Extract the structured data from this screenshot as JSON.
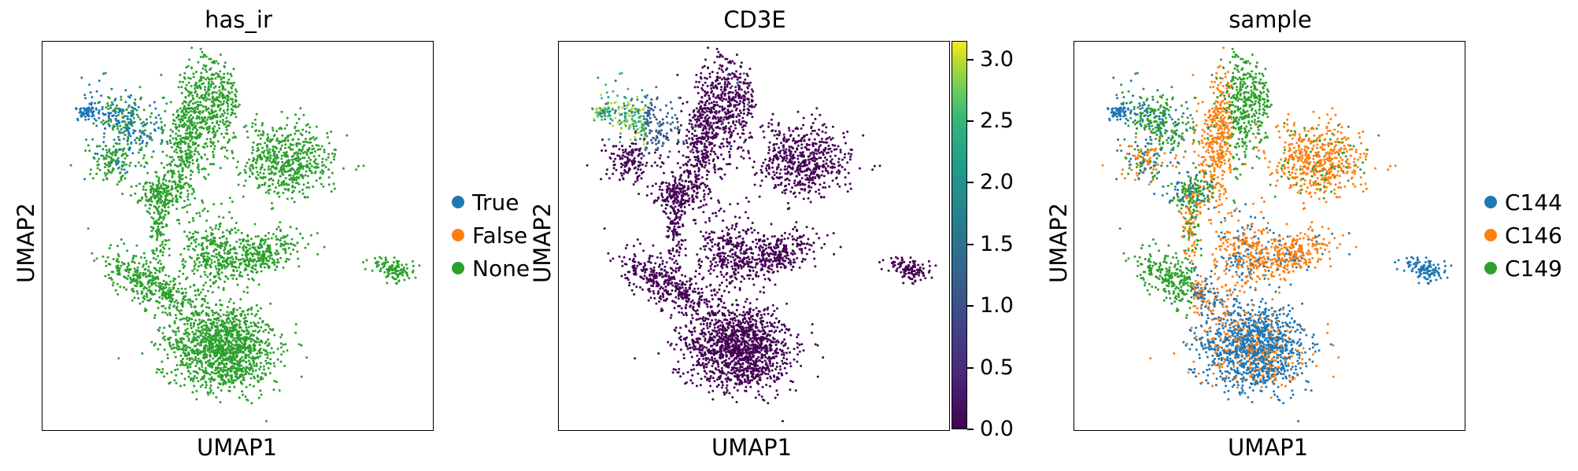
{
  "colors": {
    "blue": "#1f77b4",
    "orange": "#ff7f0e",
    "green": "#2ca02c",
    "viridis_low": "#440154",
    "viridis_high": "#fde725"
  },
  "chart_data": [
    {
      "type": "scatter",
      "title": "has_ir",
      "xlabel": "UMAP1",
      "ylabel": "UMAP2",
      "legend_position": "right",
      "series": [
        {
          "name": "True",
          "color": "#1f77b4"
        },
        {
          "name": "False",
          "color": "#ff7f0e"
        },
        {
          "name": "None",
          "color": "#2ca02c"
        }
      ]
    },
    {
      "type": "scatter",
      "title": "CD3E",
      "xlabel": "UMAP1",
      "ylabel": "UMAP2",
      "colorbar": {
        "colormap": "viridis",
        "range": [
          0,
          3.15
        ],
        "ticks": [
          "0.0",
          "0.5",
          "1.0",
          "1.5",
          "2.0",
          "2.5",
          "3.0"
        ]
      }
    },
    {
      "type": "scatter",
      "title": "sample",
      "xlabel": "UMAP1",
      "ylabel": "UMAP2",
      "legend_position": "right",
      "series": [
        {
          "name": "C144",
          "color": "#1f77b4"
        },
        {
          "name": "C146",
          "color": "#ff7f0e"
        },
        {
          "name": "C149",
          "color": "#2ca02c"
        }
      ]
    }
  ]
}
